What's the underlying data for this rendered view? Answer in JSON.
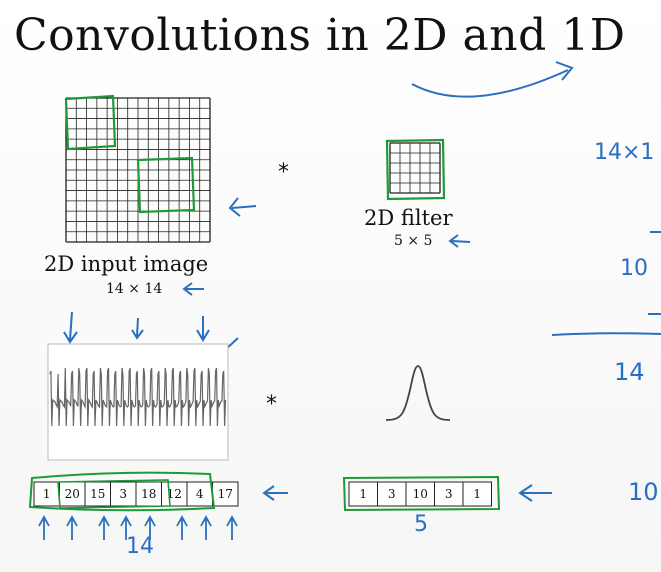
{
  "slide": {
    "title": "Convolutions in 2D and 1D",
    "input_image_label": "2D input image",
    "input_image_dims": "14 × 14",
    "filter_label": "2D filter",
    "filter_dims": "5 × 5",
    "operator_top": "*",
    "operator_bottom": "*",
    "input_grid_size": 14,
    "filter_grid_size": 5,
    "signal_1d_values": [
      "1",
      "20",
      "15",
      "3",
      "18",
      "12",
      "4",
      "17"
    ],
    "filter_1d_values": [
      "1",
      "3",
      "10",
      "3",
      "1"
    ],
    "handwritten": {
      "signal_length": "14",
      "filter_length": "5",
      "right_top": "14×1",
      "right_mid": "10",
      "right_low": "14",
      "right_bottom": "10"
    },
    "colors": {
      "ink": "#111111",
      "annotation_blue": "#2a6fbf",
      "annotation_green": "#1f9a3a"
    }
  }
}
